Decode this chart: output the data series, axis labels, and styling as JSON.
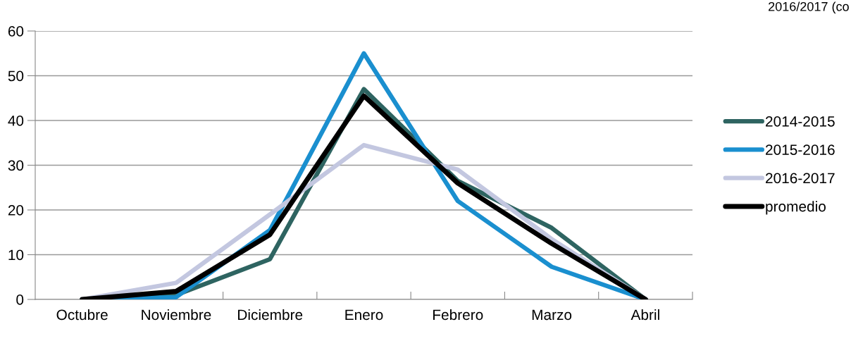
{
  "chart_data": {
    "type": "line",
    "categories": [
      "Octubre",
      "Noviembre",
      "Diciembre",
      "Enero",
      "Febrero",
      "Marzo",
      "Abril"
    ],
    "series": [
      {
        "name": "2014-2015",
        "color": "#2e6461",
        "values": [
          0,
          1,
          9,
          47,
          26.5,
          16,
          0
        ]
      },
      {
        "name": "2015-2016",
        "color": "#1a8fcf",
        "values": [
          0,
          0.5,
          15.5,
          55,
          22,
          7.3,
          0
        ]
      },
      {
        "name": "2016-2017",
        "color": "#c3c7e0",
        "values": [
          0,
          3.7,
          19,
          34.5,
          29,
          13.5,
          0
        ]
      },
      {
        "name": "promedio",
        "color": "#000000",
        "values": [
          0,
          1.8,
          14.5,
          45.5,
          26,
          12.5,
          0
        ]
      }
    ],
    "ylim": [
      0,
      60
    ],
    "yticks": [
      0,
      10,
      20,
      30,
      40,
      50,
      60
    ],
    "grid": "y",
    "legend": "right",
    "marker": "none",
    "line_style": "solid",
    "annotations": [
      "2016/2017 (co"
    ]
  }
}
